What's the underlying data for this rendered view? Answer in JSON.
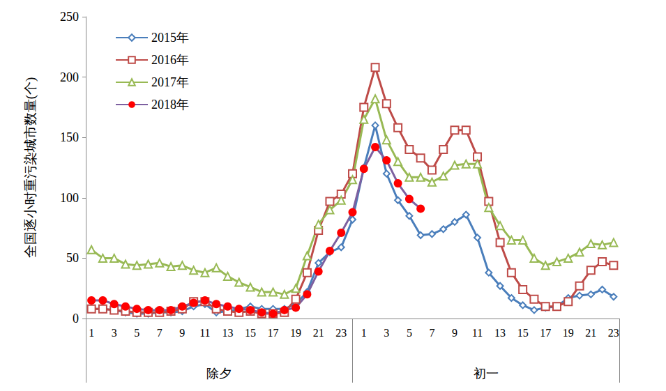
{
  "chart_data": {
    "type": "line",
    "y_label": "全国逐小时重污染城市数量(个)",
    "categories": [
      "1",
      null,
      "3",
      null,
      "5",
      null,
      "7",
      null,
      "9",
      null,
      "11",
      null,
      "13",
      null,
      "15",
      null,
      "17",
      null,
      "19",
      null,
      "21",
      null,
      "23",
      null,
      "1",
      null,
      "3",
      null,
      "5",
      null,
      "7",
      null,
      "9",
      null,
      "11",
      null,
      "13",
      null,
      "15",
      null,
      "17",
      null,
      "19",
      null,
      "21",
      null,
      "23"
    ],
    "category_groups": [
      "除夕",
      "初一"
    ],
    "ylim": [
      0,
      250
    ],
    "yticks": [
      0,
      50,
      100,
      150,
      200,
      250
    ],
    "grid": false,
    "legend": "upper left",
    "series": [
      {
        "name": "2015年",
        "color": "#4a7ebb",
        "marker": "open_diamond",
        "values": [
          8,
          8,
          7,
          5,
          4,
          4,
          5,
          5,
          6,
          10,
          12,
          5,
          6,
          8,
          10,
          8,
          8,
          8,
          12,
          22,
          46,
          55,
          59,
          82,
          125,
          160,
          120,
          98,
          85,
          69,
          70,
          74,
          80,
          86,
          67,
          38,
          27,
          17,
          11,
          7,
          9,
          10,
          17,
          19,
          20,
          24,
          18
        ]
      },
      {
        "name": "2016年",
        "color": "#be4b48",
        "marker": "open_square",
        "values": [
          8,
          8,
          7,
          6,
          5,
          5,
          5,
          6,
          8,
          14,
          14,
          8,
          6,
          5,
          6,
          4,
          4,
          5,
          16,
          38,
          73,
          97,
          103,
          120,
          175,
          208,
          178,
          158,
          140,
          133,
          123,
          140,
          156,
          156,
          134,
          97,
          63,
          38,
          24,
          16,
          10,
          10,
          14,
          27,
          40,
          47,
          44
        ]
      },
      {
        "name": "2017年",
        "color": "#98b954",
        "marker": "open_triangle",
        "values": [
          57,
          50,
          50,
          45,
          44,
          45,
          46,
          43,
          44,
          40,
          38,
          42,
          35,
          30,
          26,
          22,
          22,
          20,
          25,
          52,
          78,
          90,
          98,
          115,
          165,
          182,
          148,
          130,
          117,
          117,
          113,
          118,
          127,
          128,
          128,
          92,
          77,
          65,
          65,
          50,
          44,
          47,
          50,
          55,
          62,
          61,
          63
        ]
      },
      {
        "name": "2018年",
        "color": "#7d60a0",
        "marker": "filled_circle",
        "values": [
          15,
          15,
          12,
          10,
          8,
          7,
          7,
          7,
          10,
          13,
          15,
          12,
          10,
          8,
          7,
          5,
          4,
          7,
          9,
          20,
          39,
          56,
          71,
          88,
          124,
          142,
          131,
          112,
          99,
          91,
          null,
          null,
          null,
          null,
          null,
          null,
          null,
          null,
          null,
          null,
          null,
          null,
          null,
          null,
          null,
          null,
          null
        ]
      }
    ]
  }
}
